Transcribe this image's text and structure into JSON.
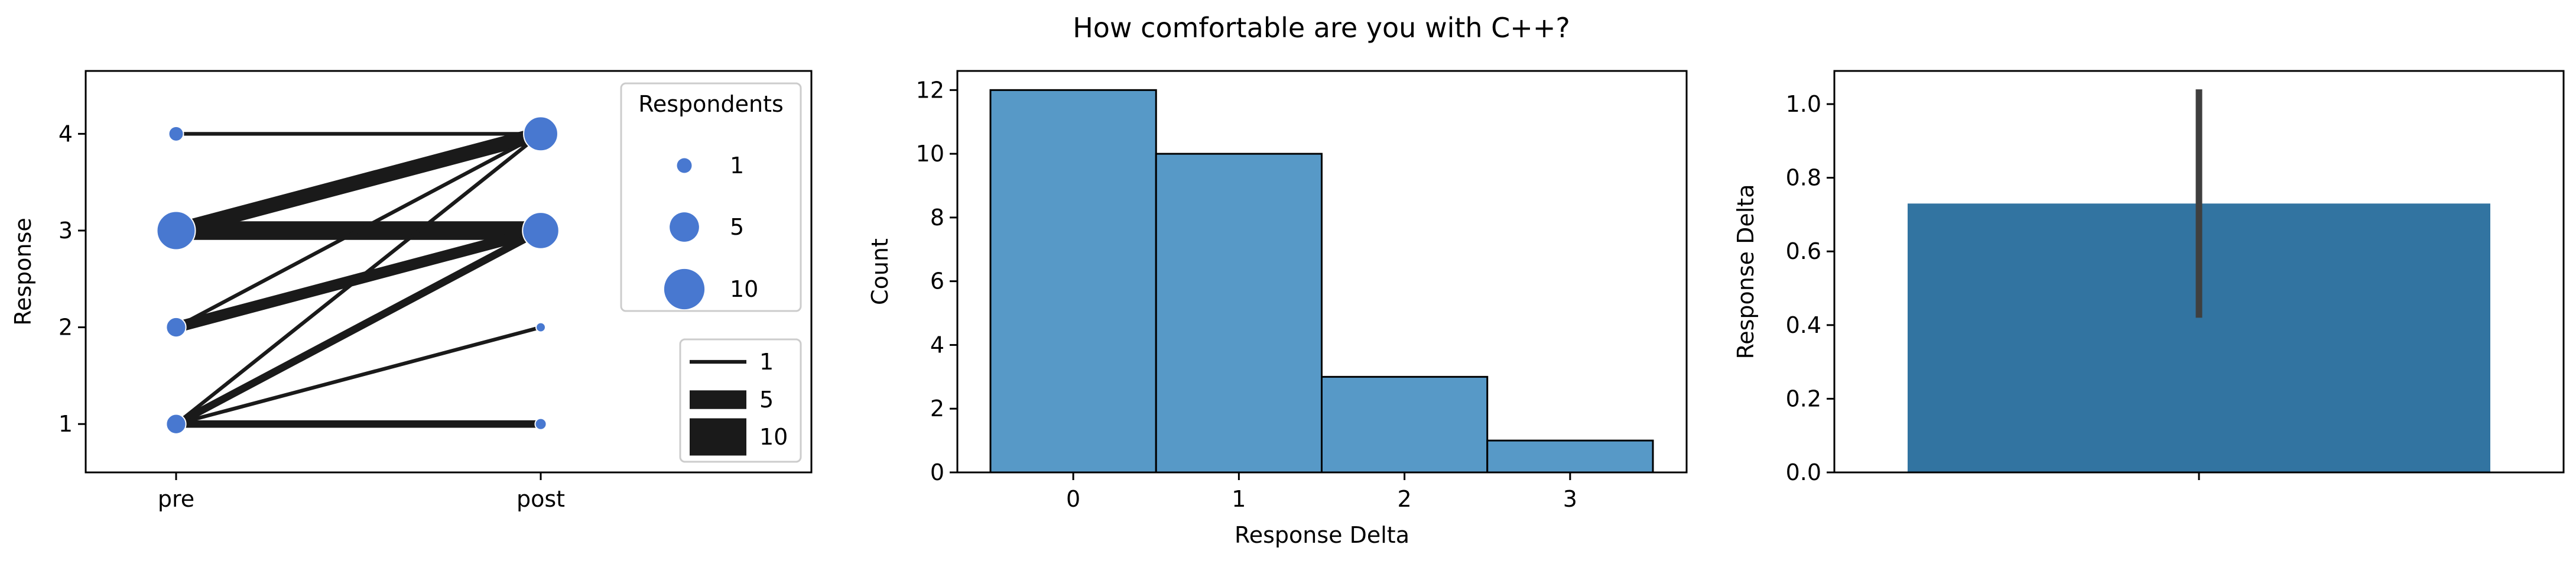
{
  "suptitle": "How comfortable are you with C++?",
  "chart_data": [
    {
      "type": "slope",
      "ylabel": "Response",
      "x_categories": [
        "pre",
        "post"
      ],
      "ylim": [
        0.5,
        4.65
      ],
      "yticks": [
        "1",
        "2",
        "3",
        "4"
      ],
      "nodes": [
        {
          "x": "pre",
          "y": 4,
          "count": 1
        },
        {
          "x": "pre",
          "y": 3,
          "count": 9
        },
        {
          "x": "pre",
          "y": 2,
          "count": 2
        },
        {
          "x": "pre",
          "y": 1,
          "count": 2
        },
        {
          "x": "post",
          "y": 4,
          "count": 7
        },
        {
          "x": "post",
          "y": 3,
          "count": 8
        },
        {
          "x": "post",
          "y": 2,
          "count": 0.3
        },
        {
          "x": "post",
          "y": 1,
          "count": 0.5
        }
      ],
      "links": [
        {
          "from": 4,
          "to": 4,
          "count": 1
        },
        {
          "from": 3,
          "to": 4,
          "count": 4
        },
        {
          "from": 3,
          "to": 3,
          "count": 5
        },
        {
          "from": 2,
          "to": 4,
          "count": 1
        },
        {
          "from": 2,
          "to": 3,
          "count": 3
        },
        {
          "from": 1,
          "to": 4,
          "count": 1
        },
        {
          "from": 1,
          "to": 3,
          "count": 2
        },
        {
          "from": 1,
          "to": 2,
          "count": 1
        },
        {
          "from": 1,
          "to": 1,
          "count": 2
        }
      ],
      "size_legend": {
        "title": "Respondents",
        "entries": [
          {
            "label": "1",
            "value": 1
          },
          {
            "label": "5",
            "value": 5
          },
          {
            "label": "10",
            "value": 10
          }
        ]
      },
      "width_legend": {
        "entries": [
          {
            "label": "1",
            "value": 1
          },
          {
            "label": "5",
            "value": 5
          },
          {
            "label": "10",
            "value": 10
          }
        ]
      },
      "colors": {
        "node": "#4878d0",
        "link": "#1a1a1a"
      }
    },
    {
      "type": "bar",
      "title": "",
      "xlabel": "Response Delta",
      "ylabel": "Count",
      "categories": [
        "0",
        "1",
        "2",
        "3"
      ],
      "values": [
        12,
        10,
        3,
        1
      ],
      "ylim": [
        0,
        12.6
      ],
      "yticks": [
        "0",
        "2",
        "4",
        "6",
        "8",
        "10",
        "12"
      ],
      "color": "#5799c7"
    },
    {
      "type": "bar",
      "ylabel": "Response Delta",
      "categories": [
        ""
      ],
      "values": [
        0.73
      ],
      "error": [
        0.42,
        1.04
      ],
      "ylim": [
        0,
        1.09
      ],
      "yticks": [
        "0.0",
        "0.2",
        "0.4",
        "0.6",
        "0.8",
        "1.0"
      ],
      "color": "#3274a1"
    }
  ]
}
